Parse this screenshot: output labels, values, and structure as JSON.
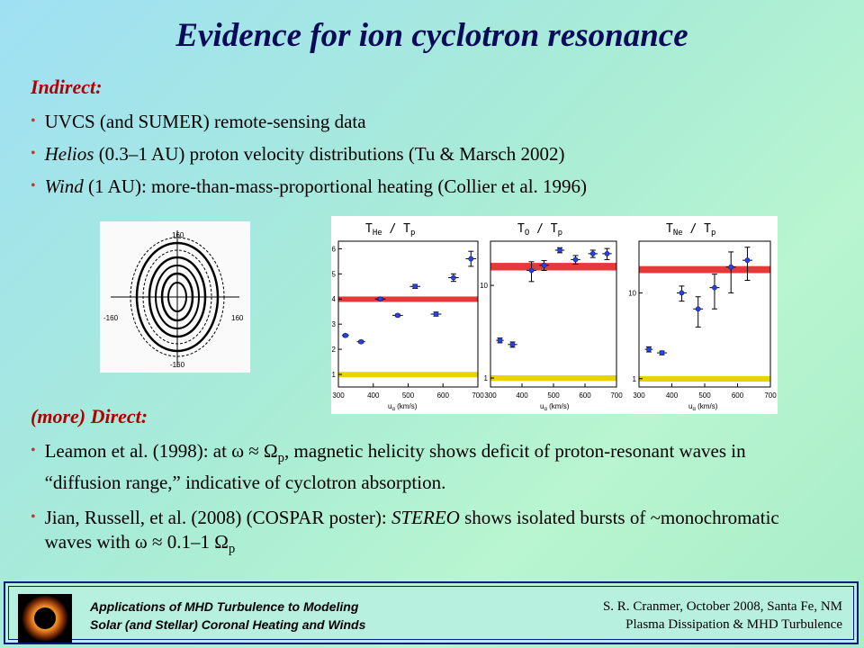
{
  "title": "Evidence for ion cyclotron resonance",
  "indirect": {
    "heading": "Indirect:",
    "bullets": [
      {
        "italic": "",
        "text": "UVCS (and SUMER) remote-sensing data"
      },
      {
        "italic": "Helios",
        "text": " (0.3–1 AU) proton velocity distributions (Tu & Marsch 2002)"
      },
      {
        "italic": "Wind",
        "text": " (1 AU): more-than-mass-proportional heating (Collier et al. 1996)"
      }
    ]
  },
  "contour_plot": {
    "tick_top": "160",
    "tick_bottom": "-160",
    "tick_left": "-160",
    "tick_right": "160"
  },
  "chart_data": [
    {
      "type": "scatter",
      "title": "T_He / T_p",
      "title_main": "T",
      "title_sub1": "He",
      "title_sub2": "p",
      "xlabel": "u_α (km/s)",
      "xlim": [
        300,
        700
      ],
      "x_ticks": [
        "300",
        "400",
        "500",
        "600",
        "700"
      ],
      "ylim": [
        0.5,
        6.3
      ],
      "y_ticks": [
        "1",
        "2",
        "3",
        "4",
        "5",
        "6"
      ],
      "red_band": [
        3.9,
        4.1
      ],
      "yellow_band": [
        0.9,
        1.1
      ],
      "points": [
        {
          "x": 320,
          "y": 2.55,
          "xerr": 10,
          "yerr": 0.05
        },
        {
          "x": 365,
          "y": 2.3,
          "xerr": 12,
          "yerr": 0.05
        },
        {
          "x": 420,
          "y": 4.0,
          "xerr": 15,
          "yerr": 0.05
        },
        {
          "x": 470,
          "y": 3.35,
          "xerr": 15,
          "yerr": 0.05
        },
        {
          "x": 520,
          "y": 4.5,
          "xerr": 15,
          "yerr": 0.08
        },
        {
          "x": 580,
          "y": 3.4,
          "xerr": 15,
          "yerr": 0.08
        },
        {
          "x": 630,
          "y": 4.85,
          "xerr": 15,
          "yerr": 0.15
        },
        {
          "x": 680,
          "y": 5.6,
          "xerr": 15,
          "yerr": 0.3
        }
      ]
    },
    {
      "type": "scatter",
      "title": "T_O / T_p",
      "title_main": "T",
      "title_sub1": "O",
      "title_sub2": "p",
      "xlabel": "u_α (km/s)",
      "xlim": [
        300,
        700
      ],
      "x_ticks": [
        "300",
        "400",
        "500",
        "600",
        "700"
      ],
      "log": true,
      "ylim": [
        0.8,
        30
      ],
      "y_ticks": [
        "1",
        "10"
      ],
      "red_band": [
        14.5,
        17.5
      ],
      "yellow_band": [
        0.93,
        1.07
      ],
      "points": [
        {
          "x": 330,
          "y": 2.55,
          "xerr": 12,
          "yerr": 0.15
        },
        {
          "x": 370,
          "y": 2.3,
          "xerr": 15,
          "yerr": 0.15
        },
        {
          "x": 430,
          "y": 14.5,
          "xerr": 15,
          "yerr": 3.5
        },
        {
          "x": 470,
          "y": 16.5,
          "xerr": 15,
          "yerr": 2
        },
        {
          "x": 520,
          "y": 24,
          "xerr": 15,
          "yerr": 1.5
        },
        {
          "x": 570,
          "y": 19,
          "xerr": 15,
          "yerr": 2
        },
        {
          "x": 625,
          "y": 22,
          "xerr": 15,
          "yerr": 2
        },
        {
          "x": 670,
          "y": 22,
          "xerr": 15,
          "yerr": 3
        }
      ]
    },
    {
      "type": "scatter",
      "title": "T_Ne / T_p",
      "title_main": "T",
      "title_sub1": "Ne",
      "title_sub2": "p",
      "xlabel": "u_α (km/s)",
      "xlim": [
        300,
        700
      ],
      "x_ticks": [
        "300",
        "400",
        "500",
        "600",
        "700"
      ],
      "log": true,
      "ylim": [
        0.8,
        40
      ],
      "y_ticks": [
        "1",
        "10"
      ],
      "red_band": [
        17,
        20.5
      ],
      "yellow_band": [
        0.93,
        1.07
      ],
      "points": [
        {
          "x": 330,
          "y": 2.2,
          "xerr": 12,
          "yerr": 0.15
        },
        {
          "x": 370,
          "y": 2.0,
          "xerr": 15,
          "yerr": 0.1
        },
        {
          "x": 430,
          "y": 10,
          "xerr": 15,
          "yerr": 2
        },
        {
          "x": 480,
          "y": 6.5,
          "xerr": 15,
          "yerr": 2.5
        },
        {
          "x": 530,
          "y": 11.5,
          "xerr": 15,
          "yerr": 5
        },
        {
          "x": 580,
          "y": 20,
          "xerr": 15,
          "yerr": 10
        },
        {
          "x": 630,
          "y": 24,
          "xerr": 15,
          "yerr": 10
        }
      ]
    }
  ],
  "direct": {
    "heading": "(more) Direct:",
    "bullet1": {
      "pre": "Leamon et al. (1998): at ω ≈ Ω",
      "sub": "p",
      "post": ", magnetic helicity shows deficit of proton-resonant waves in “diffusion range,” indicative of cyclotron absorption."
    },
    "bullet2": {
      "pre": "Jian, Russell, et al. (2008) (COSPAR poster):  ",
      "italic": "STEREO",
      "mid": " shows isolated bursts of ~monochromatic waves with ω ≈ 0.1–1 Ω",
      "sub": "p"
    }
  },
  "footer": {
    "left_line1": "Applications of MHD Turbulence to Modeling",
    "left_line2": "Solar (and Stellar) Coronal Heating and Winds",
    "right_line1": "S. R. Cranmer,  October 2008, Santa Fe, NM",
    "right_line2": "Plasma Dissipation & MHD Turbulence"
  }
}
